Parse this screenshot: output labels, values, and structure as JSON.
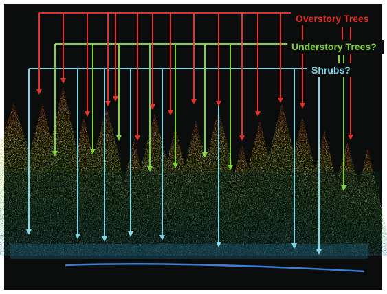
{
  "legend": {
    "overstory": {
      "label": "Overstory Trees",
      "color": "#e8302a"
    },
    "understory": {
      "label": "Understory Trees?",
      "color": "#7ed23a"
    },
    "shrubs": {
      "label": "Shrubs?",
      "color": "#7fd6e6"
    }
  },
  "background_color": "#0a0d0b"
}
